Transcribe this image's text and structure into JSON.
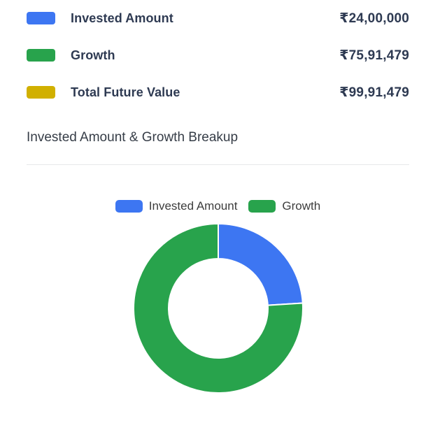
{
  "summary": {
    "rows": [
      {
        "label": "Invested Amount",
        "value": "₹24,00,000",
        "color": "#3d76f2"
      },
      {
        "label": "Growth",
        "value": "₹75,91,479",
        "color": "#28a34c"
      },
      {
        "label": "Total Future Value",
        "value": "₹99,91,479",
        "color": "#d1b000"
      }
    ]
  },
  "section": {
    "title": "Invested Amount & Growth Breakup"
  },
  "chart_data": {
    "type": "pie",
    "subtype": "donut",
    "labels": [
      "Invested Amount",
      "Growth"
    ],
    "values": [
      2400000,
      7591479
    ],
    "colors": [
      "#3d76f2",
      "#28a34c"
    ],
    "total": 9991479,
    "percentages": [
      24.02,
      75.98
    ],
    "legend_position": "top",
    "cutout_ratio": 0.59,
    "start_angle_deg": -90,
    "direction": "clockwise"
  },
  "colors": {
    "invested_blue": "#3d76f2",
    "growth_green": "#28a34c",
    "total_yellow": "#d1b000",
    "text_navy": "#2e3a52",
    "heading_gray": "#363d47",
    "divider_gray": "#e7e8ea"
  }
}
